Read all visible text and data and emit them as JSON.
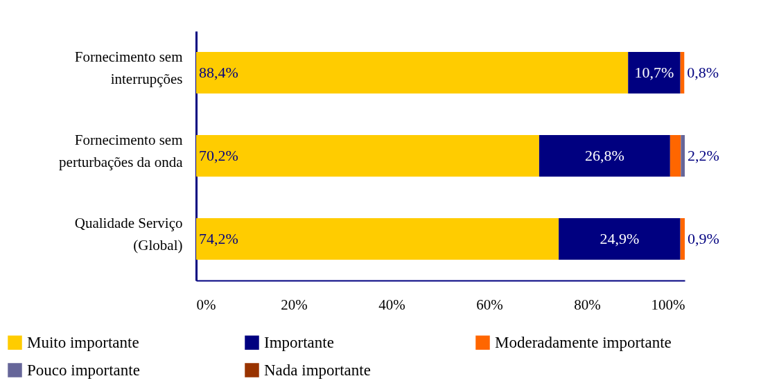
{
  "chart_data": {
    "type": "bar",
    "orientation": "horizontal",
    "stacked": true,
    "categories": [
      "Fornecimento sem interrupções",
      "Fornecimento sem perturbações da onda",
      "Qualidade Serviço (Global)"
    ],
    "series": [
      {
        "name": "Muito importante",
        "color": "#ffcc00",
        "values": [
          88.4,
          70.2,
          74.2
        ],
        "value_labels": [
          "88,4%",
          "70,2%",
          "74,2%"
        ]
      },
      {
        "name": "Importante",
        "color": "#000080",
        "values": [
          10.7,
          26.8,
          24.9
        ],
        "value_labels": [
          "10,7%",
          "26,8%",
          "24,9%"
        ]
      },
      {
        "name": "Moderadamente importante",
        "color": "#ff6600",
        "values": [
          0.8,
          2.2,
          0.9
        ],
        "value_labels": [
          "0,8%",
          "2,2%",
          "0,9%"
        ]
      },
      {
        "name": "Pouco importante",
        "color": "#666699",
        "values": [
          null,
          0.8,
          null
        ]
      },
      {
        "name": "Nada importante",
        "color": "#993300",
        "values": [
          null,
          null,
          null
        ]
      }
    ],
    "xlim": [
      0,
      100
    ],
    "xticks": [
      {
        "value": 0,
        "label": "0%"
      },
      {
        "value": 20,
        "label": "20%"
      },
      {
        "value": 40,
        "label": "40%"
      },
      {
        "value": 60,
        "label": "60%"
      },
      {
        "value": 80,
        "label": "80%"
      },
      {
        "value": 100,
        "label": "100%"
      }
    ],
    "grid": false,
    "legend": "bottom"
  }
}
